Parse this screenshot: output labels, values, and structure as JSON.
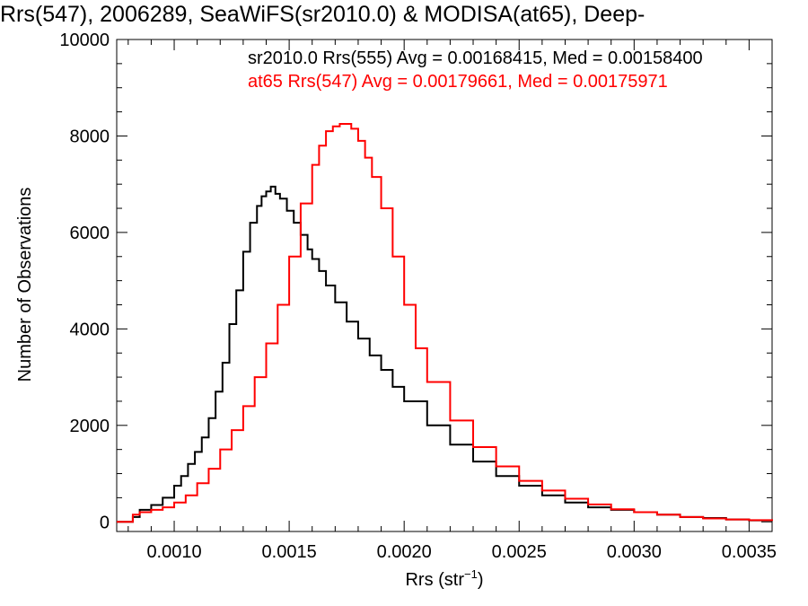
{
  "chart_data": {
    "type": "line",
    "title": "Rrs(547), 2006289, SeaWiFS(sr2010.0) & MODISA(at65), Deep-",
    "xlabel": "Rrs (str",
    "xlabel_sup": "−1",
    "xlabel_close": ")",
    "ylabel": "Number of Observations",
    "xlim": [
      0.00075,
      0.0036
    ],
    "ylim": [
      -200,
      10000
    ],
    "x_ticks": [
      0.001,
      0.0015,
      0.002,
      0.0025,
      0.003,
      0.0035
    ],
    "x_tick_labels": [
      "0.0010",
      "0.0015",
      "0.0020",
      "0.0025",
      "0.0030",
      "0.0035"
    ],
    "y_ticks": [
      0,
      2000,
      4000,
      6000,
      8000,
      10000
    ],
    "y_tick_labels": [
      "0",
      "2000",
      "4000",
      "6000",
      "8000",
      "10000"
    ],
    "legend": [
      {
        "text": "sr2010.0 Rrs(555) Avg = 0.00168415, Med = 0.00158400",
        "color": "#000000"
      },
      {
        "text": "at65 Rrs(547) Avg = 0.00179661, Med = 0.00175971",
        "color": "#ff0000"
      }
    ],
    "series": [
      {
        "color": "#000000",
        "style": "step",
        "x": [
          0.00075,
          0.0008,
          0.00082,
          0.00085,
          0.0009,
          0.00095,
          0.001,
          0.00103,
          0.00106,
          0.00109,
          0.00112,
          0.00115,
          0.00118,
          0.00121,
          0.00124,
          0.00127,
          0.0013,
          0.00133,
          0.00136,
          0.00138,
          0.0014,
          0.00142,
          0.00144,
          0.00146,
          0.00149,
          0.00152,
          0.00155,
          0.00158,
          0.0016,
          0.00163,
          0.00166,
          0.0017,
          0.00175,
          0.0018,
          0.00185,
          0.0019,
          0.00195,
          0.002,
          0.0021,
          0.0022,
          0.0023,
          0.0024,
          0.0025,
          0.0026,
          0.0027,
          0.0028,
          0.0029,
          0.003,
          0.0031,
          0.0032,
          0.0033,
          0.0034,
          0.0035,
          0.0036
        ],
        "y": [
          0,
          0,
          100,
          250,
          350,
          500,
          750,
          950,
          1200,
          1450,
          1750,
          2150,
          2700,
          3300,
          4100,
          4800,
          5600,
          6200,
          6550,
          6750,
          6850,
          6950,
          6800,
          6700,
          6450,
          6200,
          5950,
          5650,
          5450,
          5200,
          4900,
          4550,
          4150,
          3800,
          3450,
          3150,
          2800,
          2500,
          2000,
          1600,
          1250,
          950,
          750,
          550,
          400,
          300,
          250,
          200,
          150,
          100,
          80,
          50,
          30,
          20
        ]
      },
      {
        "color": "#ff0000",
        "style": "step",
        "x": [
          0.00075,
          0.0008,
          0.00082,
          0.00085,
          0.0009,
          0.00095,
          0.001,
          0.00105,
          0.0011,
          0.00115,
          0.0012,
          0.00125,
          0.0013,
          0.00135,
          0.0014,
          0.00145,
          0.0015,
          0.00155,
          0.0016,
          0.00163,
          0.00166,
          0.00169,
          0.00172,
          0.00175,
          0.00177,
          0.0018,
          0.00183,
          0.00186,
          0.0019,
          0.00195,
          0.002,
          0.00205,
          0.0021,
          0.0022,
          0.0023,
          0.0024,
          0.0025,
          0.0026,
          0.0027,
          0.0028,
          0.0029,
          0.003,
          0.0031,
          0.0032,
          0.0033,
          0.0034,
          0.0035,
          0.0036
        ],
        "y": [
          0,
          0,
          150,
          200,
          250,
          300,
          400,
          550,
          800,
          1100,
          1500,
          1900,
          2400,
          3000,
          3700,
          4500,
          5500,
          6600,
          7400,
          7800,
          8100,
          8200,
          8250,
          8250,
          8150,
          7900,
          7550,
          7150,
          6500,
          5500,
          4500,
          3600,
          2900,
          2100,
          1550,
          1150,
          850,
          650,
          480,
          360,
          260,
          200,
          150,
          100,
          70,
          50,
          35,
          20
        ]
      }
    ],
    "grid": false,
    "legend_position": "top-right"
  }
}
